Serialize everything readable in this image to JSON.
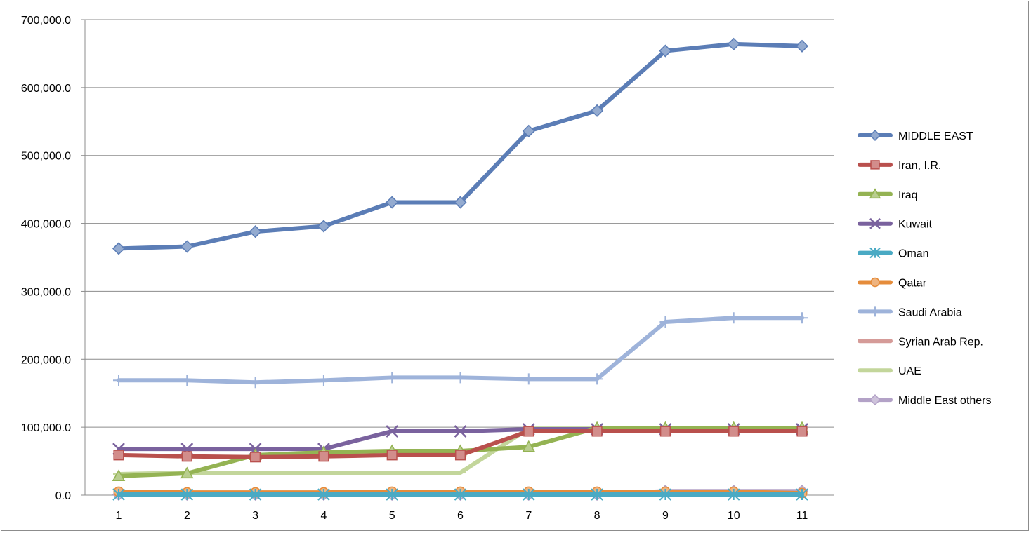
{
  "chart_data": {
    "type": "line",
    "title": "",
    "xlabel": "",
    "ylabel": "",
    "x": [
      1,
      2,
      3,
      4,
      5,
      6,
      7,
      8,
      9,
      10,
      11
    ],
    "ylim": [
      0,
      700000
    ],
    "yticks": [
      0,
      100000,
      200000,
      300000,
      400000,
      500000,
      600000,
      700000
    ],
    "ytick_labels": [
      "0.0",
      "100,000.0",
      "200,000.0",
      "300,000.0",
      "400,000.0",
      "500,000.0",
      "600,000.0",
      "700,000.0"
    ],
    "grid": "horizontal",
    "legend_position": "right",
    "series": [
      {
        "name": "MIDDLE EAST",
        "color": "#5b7db6",
        "marker": "diamond",
        "values": [
          363000,
          366000,
          388000,
          396000,
          431000,
          431000,
          536000,
          566000,
          654000,
          664000,
          661000
        ]
      },
      {
        "name": "Iran, I.R.",
        "color": "#b9504d",
        "marker": "square",
        "values": [
          59000,
          57000,
          56000,
          57000,
          59000,
          59000,
          94000,
          94000,
          94000,
          94000,
          94000
        ]
      },
      {
        "name": "Iraq",
        "color": "#94b353",
        "marker": "triangle",
        "values": [
          28000,
          32000,
          59000,
          63000,
          65000,
          65000,
          71000,
          99000,
          99000,
          99000,
          99000
        ]
      },
      {
        "name": "Kuwait",
        "color": "#7a629e",
        "marker": "x",
        "values": [
          68000,
          68000,
          68000,
          68000,
          94000,
          94000,
          97000,
          97000,
          97000,
          97000,
          97000
        ]
      },
      {
        "name": "Oman",
        "color": "#4aaac4",
        "marker": "star",
        "values": [
          1000,
          1000,
          1000,
          1000,
          1000,
          1000,
          1000,
          1000,
          1000,
          1000,
          1000
        ]
      },
      {
        "name": "Qatar",
        "color": "#e58c3b",
        "marker": "circle",
        "values": [
          5000,
          4000,
          4000,
          4000,
          5000,
          5000,
          5000,
          5000,
          5000,
          5000,
          3000
        ]
      },
      {
        "name": "Saudi Arabia",
        "color": "#9eb3da",
        "marker": "plus",
        "values": [
          169000,
          169000,
          166000,
          169000,
          173000,
          173000,
          171000,
          171000,
          255000,
          261000,
          261000
        ]
      },
      {
        "name": "Syrian Arab Rep.",
        "color": "#d59b98",
        "marker": "none",
        "values": [
          2500,
          2500,
          2500,
          2500,
          2500,
          2500,
          2500,
          2500,
          2500,
          2500,
          2500
        ]
      },
      {
        "name": "UAE",
        "color": "#c3d69b",
        "marker": "dash",
        "values": [
          31000,
          33000,
          33000,
          33000,
          33000,
          33000,
          98000,
          98000,
          98000,
          98000,
          98000
        ]
      },
      {
        "name": "Middle East others",
        "color": "#b3a2c7",
        "marker": "diamond",
        "values": [
          1000,
          1000,
          1000,
          1000,
          1000,
          1000,
          1000,
          1000,
          6000,
          6000,
          6000
        ]
      }
    ]
  }
}
